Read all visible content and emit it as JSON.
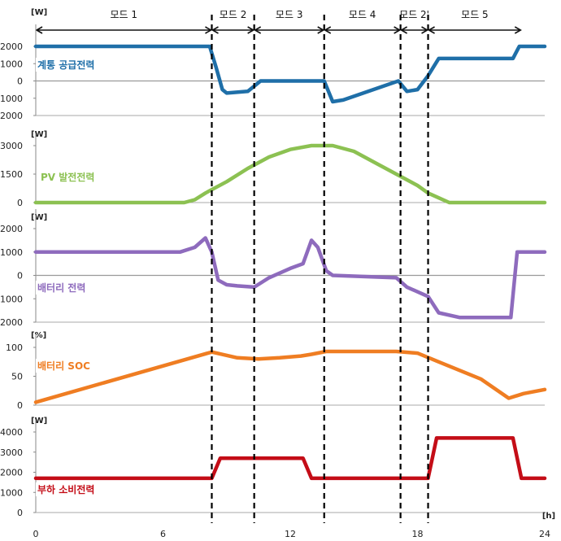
{
  "chart_data": {
    "type": "line",
    "x_unit": "[h]",
    "x_ticks": [
      "0",
      "6",
      "12",
      "18",
      "24"
    ],
    "xlim": [
      0,
      24
    ],
    "modes": [
      {
        "label": "모드 1",
        "start": 0,
        "end": 8.3
      },
      {
        "label": "모드 2",
        "start": 8.3,
        "end": 10.3
      },
      {
        "label": "모드 3",
        "start": 10.3,
        "end": 13.6
      },
      {
        "label": "모드 4",
        "start": 13.6,
        "end": 17.2
      },
      {
        "label": "모드 2'",
        "start": 17.2,
        "end": 18.5
      },
      {
        "label": "모드 5",
        "start": 18.5,
        "end": 22.9
      }
    ],
    "mode_boundaries": [
      8.3,
      10.3,
      13.6,
      17.2,
      18.5
    ],
    "panels": [
      {
        "name": "계통 공급전력",
        "unit": "[W]",
        "color": "#1f6fa8",
        "ylim": [
          -2000,
          2000
        ],
        "y_ticks": [
          "2000",
          "1000",
          "0",
          "-1000",
          "-2000"
        ],
        "zero_line": true,
        "x": [
          0,
          8.2,
          8.5,
          8.8,
          9.0,
          10.0,
          10.3,
          10.6,
          13.6,
          14.0,
          14.5,
          17.1,
          17.5,
          18.0,
          18.5,
          19.0,
          22.5,
          22.8,
          24
        ],
        "y": [
          2000,
          2000,
          800,
          -500,
          -700,
          -600,
          -300,
          0,
          0,
          -1200,
          -1100,
          0,
          -600,
          -500,
          300,
          1300,
          1300,
          2000,
          2000
        ]
      },
      {
        "name": "PV 발전전력",
        "unit": "[W]",
        "color": "#8cc152",
        "ylim": [
          0,
          3000
        ],
        "y_ticks": [
          "3000",
          "1500",
          "0"
        ],
        "zero_line": false,
        "x": [
          0,
          7.0,
          7.5,
          8.0,
          9.0,
          10.0,
          11.0,
          12.0,
          13.0,
          14.0,
          15.0,
          16.0,
          17.0,
          18.0,
          18.5,
          19.0,
          19.5,
          24
        ],
        "y": [
          0,
          0,
          150,
          500,
          1100,
          1800,
          2400,
          2800,
          3000,
          3000,
          2700,
          2100,
          1500,
          900,
          500,
          250,
          0,
          0
        ]
      },
      {
        "name": "배터리 전력",
        "unit": "[W]",
        "color": "#8e6bbd",
        "ylim": [
          -2000,
          2000
        ],
        "y_ticks": [
          "2000",
          "1000",
          "0",
          "-1000",
          "-2000"
        ],
        "zero_line": true,
        "x": [
          0,
          6.8,
          7.5,
          8.0,
          8.3,
          8.6,
          9.0,
          9.5,
          10.3,
          11.0,
          12.0,
          12.6,
          13.0,
          13.3,
          13.7,
          14.0,
          17.0,
          17.5,
          18.5,
          19.0,
          20.0,
          22.4,
          22.7,
          23.0,
          24
        ],
        "y": [
          1000,
          1000,
          1200,
          1600,
          1000,
          -200,
          -400,
          -450,
          -500,
          -100,
          300,
          500,
          1500,
          1200,
          200,
          0,
          -100,
          -500,
          -900,
          -1600,
          -1800,
          -1800,
          1000,
          1000,
          1000
        ]
      },
      {
        "name": "배터리 SOC",
        "unit": "[%]",
        "color": "#ef7d22",
        "ylim": [
          0,
          100
        ],
        "y_ticks": [
          "100",
          "50",
          "0"
        ],
        "zero_line": false,
        "x": [
          0,
          8.3,
          9.5,
          10.5,
          11.5,
          12.5,
          13.0,
          13.7,
          17.0,
          18.0,
          19.0,
          20.0,
          21.0,
          22.3,
          23.0,
          24
        ],
        "y": [
          5,
          92,
          82,
          80,
          82,
          85,
          88,
          93,
          93,
          90,
          75,
          60,
          45,
          12,
          20,
          27
        ]
      },
      {
        "name": "부하 소비전력",
        "unit": "[W]",
        "color": "#c40d17",
        "ylim": [
          0,
          4000
        ],
        "y_ticks": [
          "4000",
          "3000",
          "2000",
          "1000",
          "0"
        ],
        "zero_line": false,
        "x": [
          0,
          8.3,
          8.7,
          12.6,
          13.0,
          18.5,
          18.9,
          22.5,
          22.9,
          24
        ],
        "y": [
          1700,
          1700,
          2700,
          2700,
          1700,
          1700,
          3700,
          3700,
          1700,
          1700
        ]
      }
    ]
  }
}
